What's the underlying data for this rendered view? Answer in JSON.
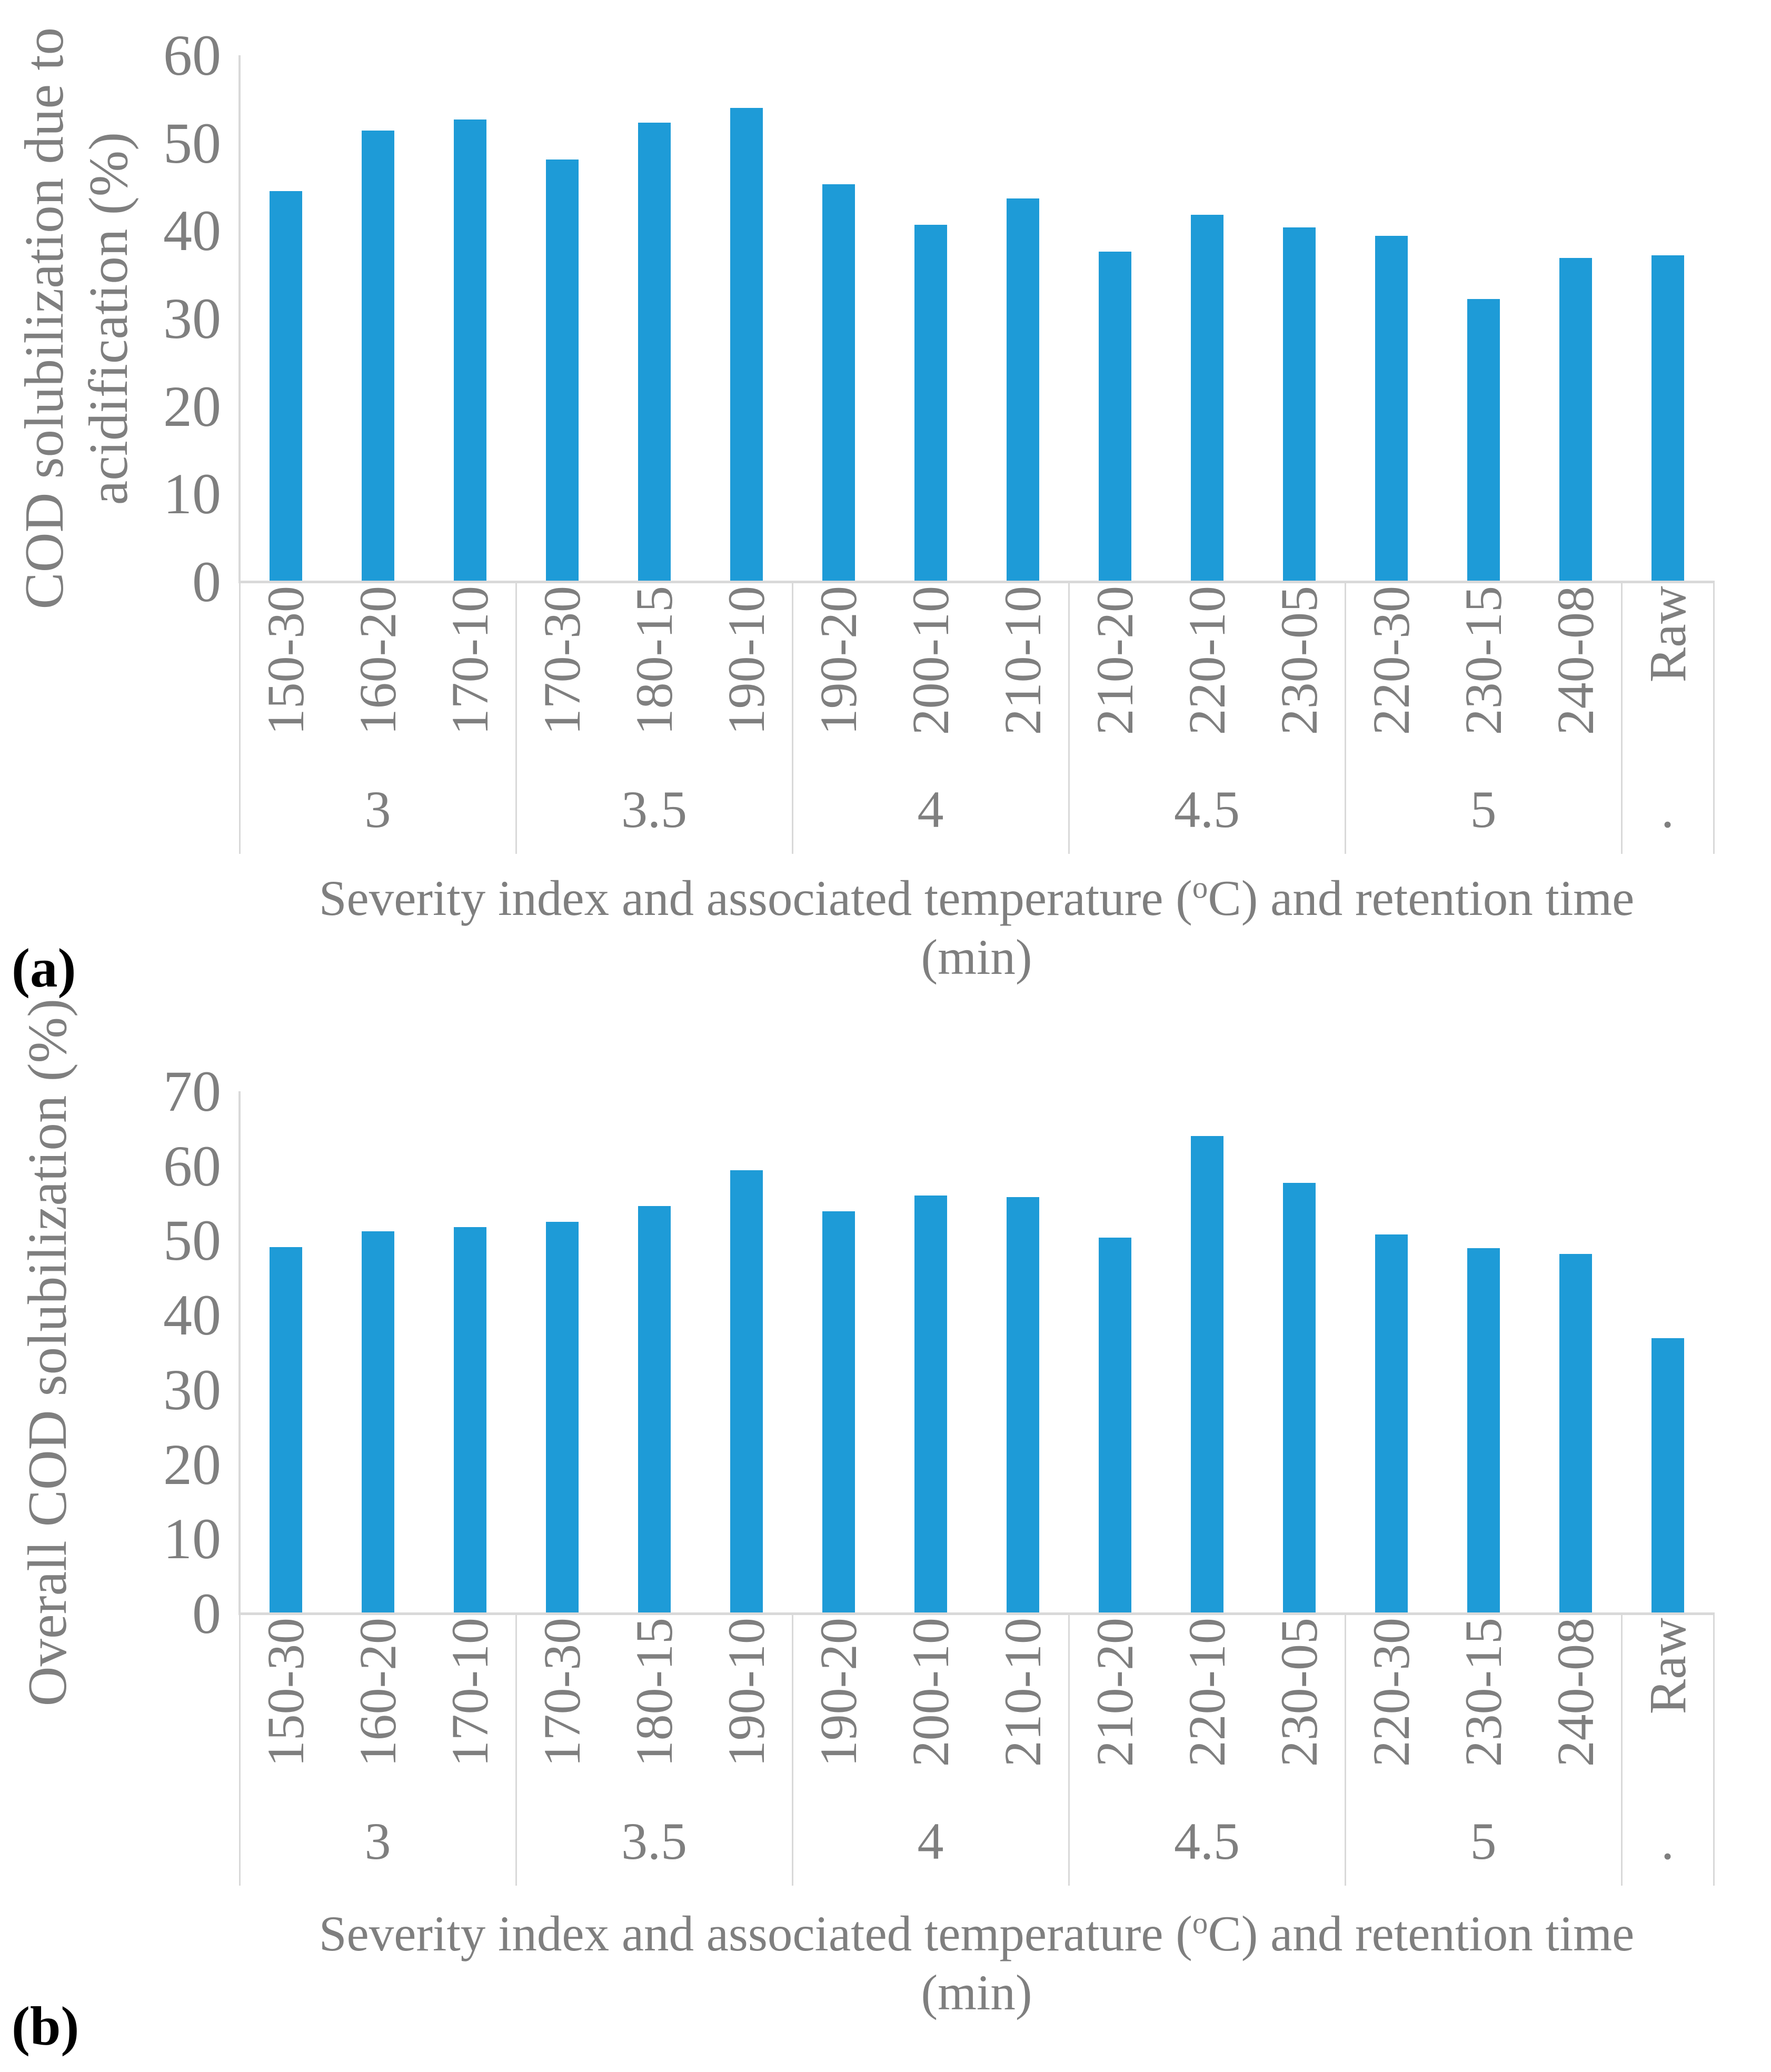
{
  "figure": {
    "panel_a_label": "(a)",
    "panel_b_label": "(b)"
  },
  "colors": {
    "bar": "#1E9BD7",
    "axis_line": "#D9D9D9",
    "text": "#7F7F7F",
    "panel_label": "#000000"
  },
  "chart_data": [
    {
      "id": "a",
      "type": "bar",
      "title": "",
      "ylabel_lines": [
        "COD solubilization due to",
        "acidification (%)"
      ],
      "xlabel": {
        "prefix": "Severity index and associated temperature (",
        "sup": "o",
        "suffix": "C) and retention time",
        "line2": "(min)"
      },
      "ylim": [
        0,
        60
      ],
      "yticks": [
        0,
        10,
        20,
        30,
        40,
        50,
        60
      ],
      "categories": [
        "150-30",
        "160-20",
        "170-10",
        "170-30",
        "180-15",
        "190-10",
        "190-20",
        "200-10",
        "210-10",
        "210-20",
        "220-10",
        "230-05",
        "220-30",
        "230-15",
        "240-08",
        "Raw"
      ],
      "groups": [
        {
          "label": "3",
          "span": 3
        },
        {
          "label": "3.5",
          "span": 3
        },
        {
          "label": "4",
          "span": 3
        },
        {
          "label": "4.5",
          "span": 3
        },
        {
          "label": "5",
          "span": 3
        },
        {
          "label": ".",
          "span": 1
        }
      ],
      "values": [
        44.5,
        51.4,
        52.7,
        48.1,
        52.3,
        54.0,
        45.3,
        40.7,
        43.7,
        37.6,
        41.8,
        40.4,
        39.4,
        32.2,
        36.9,
        37.2
      ],
      "legend": "none",
      "grid": "off"
    },
    {
      "id": "b",
      "type": "bar",
      "title": "",
      "ylabel_lines": [
        "Overall COD solubilization (%)"
      ],
      "xlabel": {
        "prefix": "Severity index and associated temperature (",
        "sup": "o",
        "suffix": "C) and retention time",
        "line2": "(min)"
      },
      "ylim": [
        0,
        70
      ],
      "yticks": [
        0,
        10,
        20,
        30,
        40,
        50,
        60,
        70
      ],
      "categories": [
        "150-30",
        "160-20",
        "170-10",
        "170-30",
        "180-15",
        "190-10",
        "190-20",
        "200-10",
        "210-10",
        "210-20",
        "220-10",
        "230-05",
        "220-30",
        "230-15",
        "240-08",
        "Raw"
      ],
      "groups": [
        {
          "label": "3",
          "span": 3
        },
        {
          "label": "3.5",
          "span": 3
        },
        {
          "label": "4",
          "span": 3
        },
        {
          "label": "4.5",
          "span": 3
        },
        {
          "label": "5",
          "span": 3
        },
        {
          "label": ".",
          "span": 1
        }
      ],
      "values": [
        49.1,
        51.2,
        51.8,
        52.5,
        54.6,
        59.4,
        53.9,
        56.0,
        55.8,
        50.4,
        64.0,
        57.7,
        50.8,
        49.0,
        48.2,
        36.9
      ],
      "legend": "none",
      "grid": "off"
    }
  ]
}
